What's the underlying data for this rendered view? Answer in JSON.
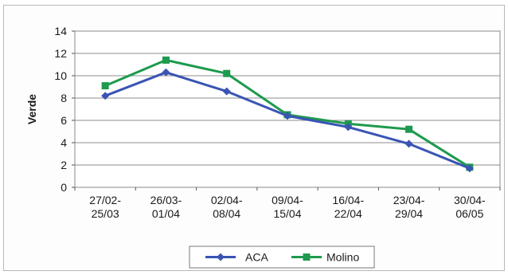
{
  "chart_data": {
    "type": "line",
    "title": "",
    "xlabel": "",
    "ylabel": "Verde",
    "ylim": [
      0,
      14
    ],
    "yticks": [
      0,
      2,
      4,
      6,
      8,
      10,
      12,
      14
    ],
    "grid": true,
    "legend": "bottom",
    "categories": [
      [
        "27/02-",
        "25/03"
      ],
      [
        "26/03-",
        "01/04"
      ],
      [
        "02/04-",
        "08/04"
      ],
      [
        "09/04-",
        "15/04"
      ],
      [
        "16/04-",
        "22/04"
      ],
      [
        "23/04-",
        "29/04"
      ],
      [
        "30/04-",
        "06/05"
      ]
    ],
    "series": [
      {
        "name": "ACA",
        "color": "#3a54b4",
        "marker": "diamond",
        "values": [
          8.2,
          10.3,
          8.6,
          6.4,
          5.4,
          3.9,
          1.7
        ]
      },
      {
        "name": "Molino",
        "color": "#1e9a4e",
        "marker": "square",
        "values": [
          9.1,
          11.4,
          10.2,
          6.5,
          5.7,
          5.2,
          1.8
        ]
      }
    ]
  }
}
